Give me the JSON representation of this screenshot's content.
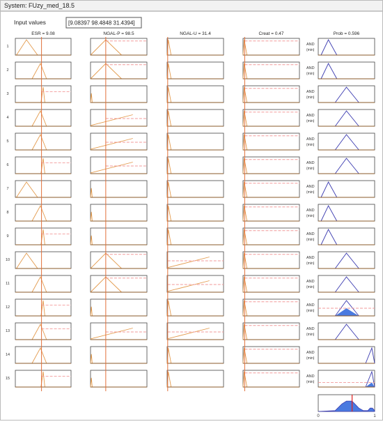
{
  "header": {
    "title": "System: FUzy_med_18.5"
  },
  "input": {
    "label": "Input values",
    "value": "[9.08397 98.4848 31.4394]"
  },
  "columns": [
    "ESR = 9.08",
    "NGAL-P = 98.5",
    "NGAL-U = 31.4",
    "Creat = 0.47",
    "Prob = 0.596"
  ],
  "rule_numbers": [
    "1",
    "2",
    "3",
    "4",
    "5",
    "6",
    "7",
    "8",
    "9",
    "10",
    "11",
    "12",
    "13",
    "14",
    "15"
  ],
  "operator": {
    "and": "AND",
    "method": "(min)"
  },
  "output_axis": {
    "min_label": "0",
    "max_label": "1"
  }
}
